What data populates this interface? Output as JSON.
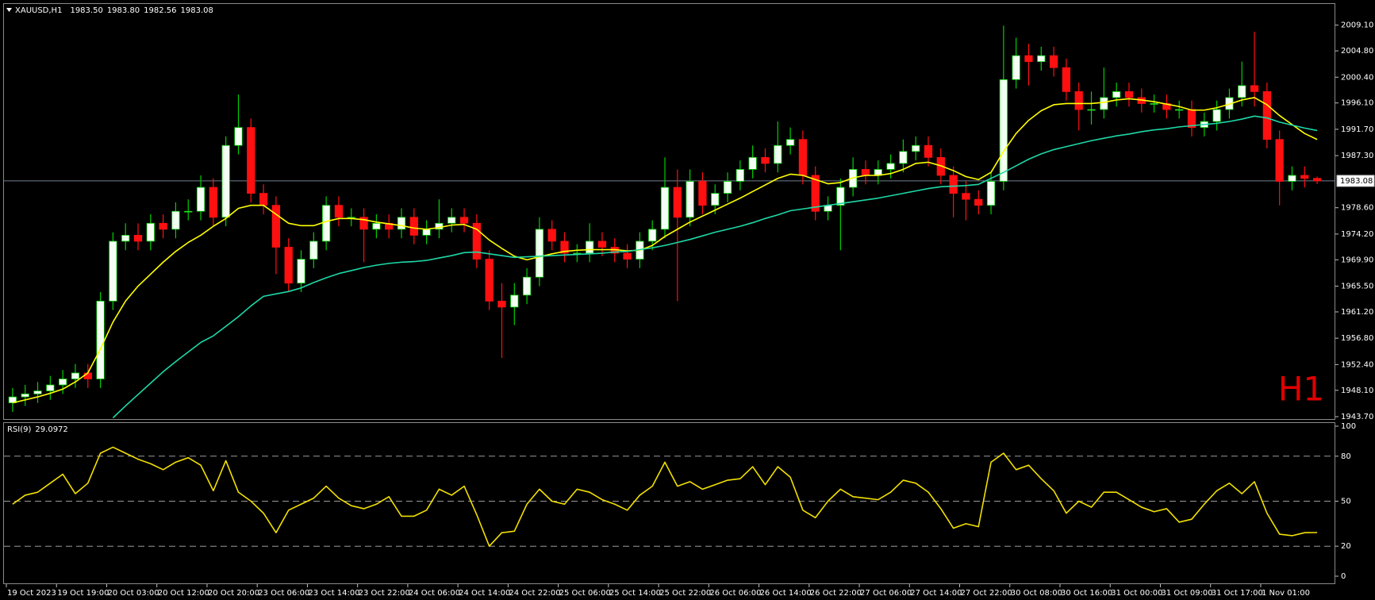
{
  "chart_data": [
    {
      "type": "candlestick",
      "symbol": "XAUUSD,H1",
      "quote": {
        "open": {
          "value": 1983.5,
          "label": "1983.50"
        },
        "high": {
          "value": 1983.8,
          "label": "1983.80"
        },
        "low": {
          "value": 1982.56,
          "label": "1982.56"
        },
        "close": {
          "value": 1983.08,
          "label": "1983.08"
        }
      },
      "timeframe_label": "H1",
      "categories": [
        "19 Oct 2023",
        null,
        null,
        null,
        "19 Oct 19:00",
        null,
        null,
        null,
        "20 Oct 03:00",
        null,
        null,
        null,
        "20 Oct 12:00",
        null,
        null,
        null,
        "20 Oct 20:00",
        null,
        null,
        null,
        "23 Oct 06:00",
        null,
        null,
        null,
        "23 Oct 14:00",
        null,
        null,
        null,
        "23 Oct 22:00",
        null,
        null,
        null,
        "24 Oct 06:00",
        null,
        null,
        null,
        "24 Oct 14:00",
        null,
        null,
        null,
        "24 Oct 22:00",
        null,
        null,
        null,
        "25 Oct 06:00",
        null,
        null,
        null,
        "25 Oct 14:00",
        null,
        null,
        null,
        "25 Oct 22:00",
        null,
        null,
        null,
        "26 Oct 06:00",
        null,
        null,
        null,
        "26 Oct 14:00",
        null,
        null,
        null,
        "26 Oct 22:00",
        null,
        null,
        null,
        "27 Oct 06:00",
        null,
        null,
        null,
        "27 Oct 14:00",
        null,
        null,
        null,
        "27 Oct 22:00",
        null,
        null,
        null,
        "30 Oct 08:00",
        null,
        null,
        null,
        "30 Oct 16:00",
        null,
        null,
        null,
        "31 Oct 00:00",
        null,
        null,
        null,
        "31 Oct 09:00",
        null,
        null,
        null,
        "31 Oct 17:00",
        null,
        null,
        null,
        "1 Nov 01:00",
        null,
        null,
        null,
        null
      ],
      "open": [
        1946,
        1947,
        1947.5,
        1948,
        1949,
        1950,
        1951,
        1950,
        1963,
        1973,
        1974,
        1973,
        1976,
        1975,
        1978,
        1978,
        1982,
        1977,
        1989,
        1992,
        1981,
        1979,
        1972,
        1966,
        1970,
        1973,
        1979,
        1977,
        1977,
        1975,
        1976,
        1975,
        1977,
        1974,
        1975,
        1976,
        1977,
        1976,
        1970,
        1963,
        1962,
        1964,
        1967,
        1975,
        1973,
        1971,
        1971,
        1973,
        1972,
        1971,
        1970,
        1973,
        1975,
        1982,
        1977,
        1983,
        1979,
        1981,
        1983,
        1985,
        1987,
        1986,
        1989,
        1990,
        1984,
        1978,
        1979,
        1982,
        1985,
        1984,
        1985,
        1986,
        1988,
        1989,
        1987,
        1984,
        1981,
        1980,
        1979,
        1983,
        2000,
        2004,
        2003,
        2004,
        2002,
        1998,
        1995,
        1995,
        1997,
        1998,
        1997,
        1996,
        1996,
        1995,
        1995,
        1992,
        1993,
        1995,
        1997,
        1999,
        1998,
        1990,
        1983,
        1984,
        1983.5
      ],
      "high": [
        1948.5,
        1949,
        1949.5,
        1950.5,
        1951.5,
        1952.5,
        1952.5,
        1964.5,
        1974.5,
        1976,
        1976,
        1977.5,
        1977.5,
        1979.5,
        1980,
        1984,
        1983.5,
        1990.5,
        1997.5,
        1993.5,
        1982.5,
        1980.5,
        1973.5,
        1971.5,
        1974.5,
        1980.5,
        1980.5,
        1978.5,
        1978.5,
        1977.5,
        1977.5,
        1978.5,
        1978.5,
        1976.5,
        1980,
        1978.5,
        1978.5,
        1977.5,
        1971.5,
        1966,
        1966,
        1968.5,
        1977,
        1976.5,
        1974.5,
        1972.5,
        1976,
        1974.5,
        1973.5,
        1972.5,
        1974.5,
        1976.5,
        1987,
        1985,
        1985,
        1984.5,
        1982.5,
        1984.5,
        1986.5,
        1989,
        1988.5,
        1993,
        1992,
        1991.5,
        1985.5,
        1980.5,
        1983.5,
        1987,
        1986.5,
        1986.5,
        1987.5,
        1990,
        1990.5,
        1990.5,
        1988.5,
        1985.5,
        1983,
        1981.5,
        1984.5,
        2009,
        2007,
        2006,
        2005.5,
        2005.5,
        2003.5,
        1999.5,
        1998,
        2002,
        1999.5,
        1999.5,
        1998.5,
        1997.5,
        1997.5,
        1996.5,
        1996.5,
        1994.5,
        1996.5,
        1998.5,
        2003,
        2008,
        1999.5,
        1991.5,
        1985.5,
        1985.5,
        1983.8
      ],
      "low": [
        1944.5,
        1945.5,
        1946,
        1946.5,
        1947.5,
        1948.5,
        1948.5,
        1948.5,
        1961.5,
        1971.5,
        1971.5,
        1971.5,
        1973.5,
        1973.5,
        1976.5,
        1976.5,
        1975.5,
        1975.5,
        1987.5,
        1979.5,
        1977.5,
        1967.5,
        1964.5,
        1964.5,
        1968.5,
        1971.5,
        1975.5,
        1975.5,
        1969.5,
        1973.5,
        1973.5,
        1973.5,
        1972.5,
        1972.5,
        1973.5,
        1974.5,
        1974.5,
        1968.5,
        1961.5,
        1953.5,
        1959,
        1962.5,
        1965.5,
        1971.5,
        1969.5,
        1969.5,
        1969.5,
        1970.5,
        1969.5,
        1968.5,
        1968.5,
        1971.5,
        1973.5,
        1963,
        1975.5,
        1977.5,
        1977.5,
        1979.5,
        1981.5,
        1983.5,
        1984.5,
        1984.5,
        1987.5,
        1982.5,
        1976.5,
        1976.5,
        1971.5,
        1980.5,
        1982.5,
        1982.5,
        1983.5,
        1984.5,
        1986.5,
        1985.5,
        1982.5,
        1977,
        1976.5,
        1977.5,
        1977.5,
        1981.5,
        1998.5,
        1999,
        2001.5,
        2000.5,
        1996.5,
        1991.5,
        1992.5,
        1993.5,
        1995.5,
        1995.5,
        1994.5,
        1994.5,
        1993.5,
        1993.5,
        1990.5,
        1990.5,
        1991.5,
        1993.5,
        1995.5,
        1995.5,
        1988.5,
        1979,
        1981.5,
        1982,
        1982.56
      ],
      "close": [
        1947,
        1947.5,
        1948,
        1949,
        1950,
        1951,
        1950,
        1963,
        1973,
        1974,
        1973,
        1976,
        1975,
        1978,
        1978,
        1982,
        1977,
        1989,
        1992,
        1981,
        1979,
        1972,
        1966,
        1970,
        1973,
        1979,
        1977,
        1977,
        1975,
        1976,
        1975,
        1977,
        1974,
        1975,
        1976,
        1977,
        1976,
        1970,
        1963,
        1962,
        1964,
        1967,
        1975,
        1973,
        1971,
        1971,
        1973,
        1972,
        1971,
        1970,
        1973,
        1975,
        1982,
        1977,
        1983,
        1979,
        1981,
        1983,
        1985,
        1987,
        1986,
        1989,
        1990,
        1984,
        1978,
        1979,
        1982,
        1985,
        1984,
        1985,
        1986,
        1988,
        1989,
        1987,
        1984,
        1981,
        1980,
        1979,
        1983,
        2000,
        2004,
        2003,
        2004,
        2002,
        1998,
        1995,
        1995,
        1997,
        1998,
        1997,
        1996,
        1996,
        1995,
        1995,
        1992,
        1993,
        1995,
        1997,
        1999,
        1998,
        1990,
        1983,
        1984,
        1983.5,
        1983.08
      ],
      "candle_colors": {
        "up": "#f4fff4",
        "down": "#ff1010",
        "up_wick": "#00d000",
        "down_wick": "#ff1010"
      },
      "series": [
        {
          "color": "#ffff00",
          "values": [
            1946,
            1946.5,
            1947,
            1947.6,
            1948.3,
            1949.5,
            1951,
            1955,
            1959.5,
            1963,
            1965.5,
            1967.5,
            1969.5,
            1971.3,
            1972.8,
            1974,
            1975.5,
            1976.8,
            1978.5,
            1979,
            1979,
            1977.5,
            1976,
            1975.6,
            1975.6,
            1976.3,
            1976.8,
            1976.8,
            1976.6,
            1976.2,
            1975.9,
            1975.6,
            1975.2,
            1975,
            1975.3,
            1975.7,
            1975.8,
            1975,
            1973.2,
            1971.8,
            1970.5,
            1969.9,
            1970.4,
            1970.9,
            1971.3,
            1971.5,
            1971.6,
            1971.6,
            1971.6,
            1971.4,
            1971.5,
            1972.3,
            1973.8,
            1975,
            1976.2,
            1977.2,
            1978.2,
            1979.2,
            1980.2,
            1981.3,
            1982.4,
            1983.5,
            1984.2,
            1984,
            1983.3,
            1982.6,
            1982.8,
            1983.6,
            1984,
            1984,
            1984.3,
            1985,
            1986,
            1986.2,
            1985.6,
            1984.8,
            1983.8,
            1983.3,
            1984.5,
            1988,
            1991,
            1993.2,
            1994.8,
            1995.8,
            1996,
            1996,
            1996,
            1996.2,
            1996.6,
            1996.8,
            1996.6,
            1996.3,
            1995.9,
            1995.5,
            1994.9,
            1994.9,
            1995.3,
            1995.9,
            1996.6,
            1997,
            1995.8,
            1994,
            1992.5,
            1991,
            1990
          ]
        },
        {
          "color": "#1ed8a6",
          "values": [
            null,
            null,
            null,
            null,
            null,
            null,
            null,
            null,
            1943.5,
            1945.5,
            1947.4,
            1949.3,
            1951.2,
            1952.9,
            1954.5,
            1956.1,
            1957.2,
            1958.8,
            1960.4,
            1962.2,
            1963.8,
            1964.2,
            1964.6,
            1965.2,
            1966.1,
            1966.9,
            1967.6,
            1968.1,
            1968.6,
            1969,
            1969.3,
            1969.5,
            1969.6,
            1969.8,
            1970.2,
            1970.6,
            1971.1,
            1971.2,
            1970.9,
            1970.6,
            1970.3,
            1970.4,
            1970.5,
            1970.6,
            1970.7,
            1970.8,
            1970.9,
            1971,
            1971.2,
            1971.3,
            1971.6,
            1971.9,
            1972.3,
            1972.8,
            1973.3,
            1973.9,
            1974.5,
            1975,
            1975.5,
            1976.1,
            1976.8,
            1977.4,
            1978.1,
            1978.4,
            1978.7,
            1979,
            1979.3,
            1979.6,
            1979.9,
            1980.2,
            1980.6,
            1981,
            1981.4,
            1981.8,
            1982.1,
            1982.2,
            1982.3,
            1982.5,
            1983.5,
            1984.5,
            1985.6,
            1986.7,
            1987.6,
            1988.3,
            1988.8,
            1989.3,
            1989.8,
            1990.2,
            1990.6,
            1990.9,
            1991.3,
            1991.6,
            1991.8,
            1992.1,
            1992.3,
            1992.5,
            1992.7,
            1993,
            1993.4,
            1993.9,
            1993.6,
            1992.9,
            1992.4,
            1991.9,
            1991.5
          ]
        }
      ],
      "ylim": [
        1943.3,
        2012.5
      ],
      "yticks": [
        {
          "value": 1943.7,
          "label": "1943.70"
        },
        {
          "value": 1948.1,
          "label": "1948.10"
        },
        {
          "value": 1952.4,
          "label": "1952.40"
        },
        {
          "value": 1956.8,
          "label": "1956.80"
        },
        {
          "value": 1961.2,
          "label": "1961.20"
        },
        {
          "value": 1965.5,
          "label": "1965.50"
        },
        {
          "value": 1969.9,
          "label": "1969.90"
        },
        {
          "value": 1974.2,
          "label": "1974.20"
        },
        {
          "value": 1978.6,
          "label": "1978.60"
        },
        {
          "value": 1987.3,
          "label": "1987.30"
        },
        {
          "value": 1991.7,
          "label": "1991.70"
        },
        {
          "value": 1996.1,
          "label": "1996.10"
        },
        {
          "value": 2000.4,
          "label": "2000.40"
        },
        {
          "value": 2004.8,
          "label": "2004.80"
        },
        {
          "value": 2009.1,
          "label": "2009.10"
        }
      ],
      "price_line": true,
      "grid": false
    },
    {
      "type": "line",
      "title": "RSI(9)",
      "series": [
        {
          "color": "#f2e000",
          "values": [
            48,
            54,
            56,
            62,
            68,
            55,
            62,
            82,
            86,
            82,
            78,
            75,
            71,
            76,
            79,
            74,
            57,
            77,
            56,
            50,
            42,
            29,
            44,
            48,
            52,
            60,
            52,
            47,
            45,
            48,
            53,
            40,
            40,
            44,
            58,
            54,
            60,
            41,
            20,
            29,
            30,
            48,
            58,
            50,
            48,
            58,
            56,
            51,
            48,
            44,
            54,
            60,
            76,
            60,
            63,
            58,
            61,
            64,
            65,
            73,
            61,
            73,
            66,
            44,
            39,
            50,
            58,
            53,
            52,
            51,
            56,
            64,
            62,
            56,
            45,
            32,
            35,
            33,
            76,
            82,
            71,
            74,
            65,
            57,
            42,
            50,
            46,
            56,
            56,
            51,
            46,
            43,
            45,
            36,
            38,
            48,
            57,
            62,
            55,
            63,
            42,
            28,
            27,
            29,
            29.0972
          ]
        }
      ],
      "ylim": [
        0,
        100
      ],
      "yticks": [
        0,
        20,
        50,
        80,
        100
      ],
      "levels": [
        20,
        50,
        80
      ],
      "grid": false
    }
  ]
}
